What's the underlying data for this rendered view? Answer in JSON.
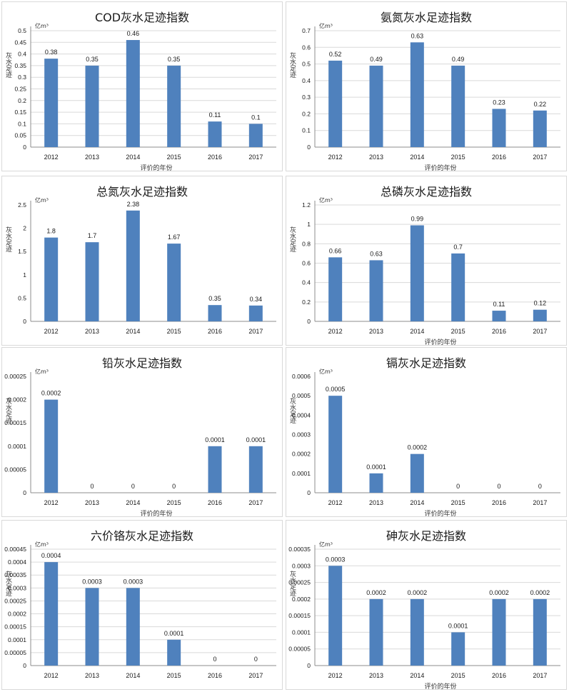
{
  "chart_data": [
    {
      "type": "bar",
      "title": "COD灰水足迹指数",
      "unit": "亿m³",
      "ylabel": "灰水足迹",
      "xlabel": "评价的年份",
      "categories": [
        "2012",
        "2013",
        "2014",
        "2015",
        "2016",
        "2017"
      ],
      "values": [
        0.38,
        0.35,
        0.46,
        0.35,
        0.11,
        0.1
      ],
      "data_labels": [
        "0.38",
        "0.35",
        "0.46",
        "0.35",
        "0.11",
        "0.1"
      ],
      "yticks": [
        "0",
        "0.05",
        "0.1",
        "0.15",
        "0.2",
        "0.25",
        "0.3",
        "0.35",
        "0.4",
        "0.45",
        "0.5"
      ],
      "ylim": [
        0,
        0.5
      ],
      "grid": true
    },
    {
      "type": "bar",
      "title": "氨氮灰水足迹指数",
      "unit": "亿m³",
      "ylabel": "灰水足迹",
      "xlabel": "评价的年份",
      "categories": [
        "2012",
        "2013",
        "2014",
        "2015",
        "2016",
        "2017"
      ],
      "values": [
        0.52,
        0.49,
        0.63,
        0.49,
        0.23,
        0.22
      ],
      "data_labels": [
        "0.52",
        "0.49",
        "0.63",
        "0.49",
        "0.23",
        "0.22"
      ],
      "yticks": [
        "0",
        "0.1",
        "0.2",
        "0.3",
        "0.4",
        "0.5",
        "0.6",
        "0.7"
      ],
      "ylim": [
        0,
        0.7
      ],
      "grid": true
    },
    {
      "type": "bar",
      "title": "总氮灰水足迹指数",
      "unit": "亿m³",
      "ylabel": "灰水足迹",
      "xlabel": "",
      "categories": [
        "2012",
        "2013",
        "2014",
        "2015",
        "2016",
        "2017"
      ],
      "values": [
        1.8,
        1.7,
        2.38,
        1.67,
        0.35,
        0.34
      ],
      "data_labels": [
        "1.8",
        "1.7",
        "2.38",
        "1.67",
        "0.35",
        "0.34"
      ],
      "yticks": [
        "0",
        "0.5",
        "1",
        "1.5",
        "2",
        "2.5"
      ],
      "ylim": [
        0,
        2.5
      ],
      "grid": false
    },
    {
      "type": "bar",
      "title": "总磷灰水足迹指数",
      "unit": "亿m³",
      "ylabel": "灰水足迹",
      "xlabel": "评价的年份",
      "categories": [
        "2012",
        "2013",
        "2014",
        "2015",
        "2016",
        "2017"
      ],
      "values": [
        0.66,
        0.63,
        0.99,
        0.7,
        0.11,
        0.12
      ],
      "data_labels": [
        "0.66",
        "0.63",
        "0.99",
        "0.7",
        "0.11",
        "0.12"
      ],
      "yticks": [
        "0",
        "0.2",
        "0.4",
        "0.6",
        "0.8",
        "1",
        "1.2"
      ],
      "ylim": [
        0,
        1.2
      ],
      "grid": true
    },
    {
      "type": "bar",
      "title": "铅灰水足迹指数",
      "unit": "亿m³",
      "ylabel": "灰水足迹",
      "xlabel": "评价的年份",
      "categories": [
        "2012",
        "2013",
        "2014",
        "2015",
        "2016",
        "2017"
      ],
      "values": [
        0.0002,
        0,
        0,
        0,
        0.0001,
        0.0001
      ],
      "data_labels": [
        "0.0002",
        "0",
        "0",
        "0",
        "0.0001",
        "0.0001"
      ],
      "yticks": [
        "0",
        "0.00005",
        "0.0001",
        "0.00015",
        "0.0002",
        "0.00025"
      ],
      "ylim": [
        0,
        0.00025
      ],
      "grid": false
    },
    {
      "type": "bar",
      "title": "镉灰水足迹指数",
      "unit": "亿m³",
      "ylabel": "灰水足迹",
      "xlabel": "评价的年份",
      "categories": [
        "2012",
        "2013",
        "2014",
        "2015",
        "2016",
        "2017"
      ],
      "values": [
        0.0005,
        0.0001,
        0.0002,
        0,
        0,
        0
      ],
      "data_labels": [
        "0.0005",
        "0.0001",
        "0.0002",
        "0",
        "0",
        "0"
      ],
      "yticks": [
        "0",
        "0.0001",
        "0.0002",
        "0.0003",
        "0.0004",
        "0.0005",
        "0.0006"
      ],
      "ylim": [
        0,
        0.0006
      ],
      "grid": false
    },
    {
      "type": "bar",
      "title": "六价铬灰水足迹指数",
      "unit": "亿m³",
      "ylabel": "灰水足迹",
      "xlabel": "",
      "categories": [
        "2012",
        "2013",
        "2014",
        "2015",
        "2016",
        "2017"
      ],
      "values": [
        0.0004,
        0.0003,
        0.0003,
        0.0001,
        0,
        0
      ],
      "data_labels": [
        "0.0004",
        "0.0003",
        "0.0003",
        "0.0001",
        "0",
        "0"
      ],
      "yticks": [
        "0",
        "0.00005",
        "0.0001",
        "0.00015",
        "0.0002",
        "0.00025",
        "0.0003",
        "0.00035",
        "0.0004",
        "0.00045"
      ],
      "ylim": [
        0,
        0.00045
      ],
      "grid": true
    },
    {
      "type": "bar",
      "title": "砷灰水足迹指数",
      "unit": "亿m³",
      "ylabel": "灰水足迹",
      "xlabel": "评价的年份",
      "categories": [
        "2012",
        "2013",
        "2014",
        "2015",
        "2016",
        "2017"
      ],
      "values": [
        0.0003,
        0.0002,
        0.0002,
        0.0001,
        0.0002,
        0.0002
      ],
      "data_labels": [
        "0.0003",
        "0.0002",
        "0.0002",
        "0.0001",
        "0.0002",
        "0.0002"
      ],
      "yticks": [
        "0",
        "0.00005",
        "0.0001",
        "0.00015",
        "0.0002",
        "0.00025",
        "0.0003",
        "0.00035"
      ],
      "ylim": [
        0,
        0.00035
      ],
      "grid": true
    }
  ],
  "colors": {
    "bar": "#4f81bd",
    "grid": "#d9d9d9",
    "axis": "#8c8c8c",
    "text": "#1a1a1a"
  }
}
